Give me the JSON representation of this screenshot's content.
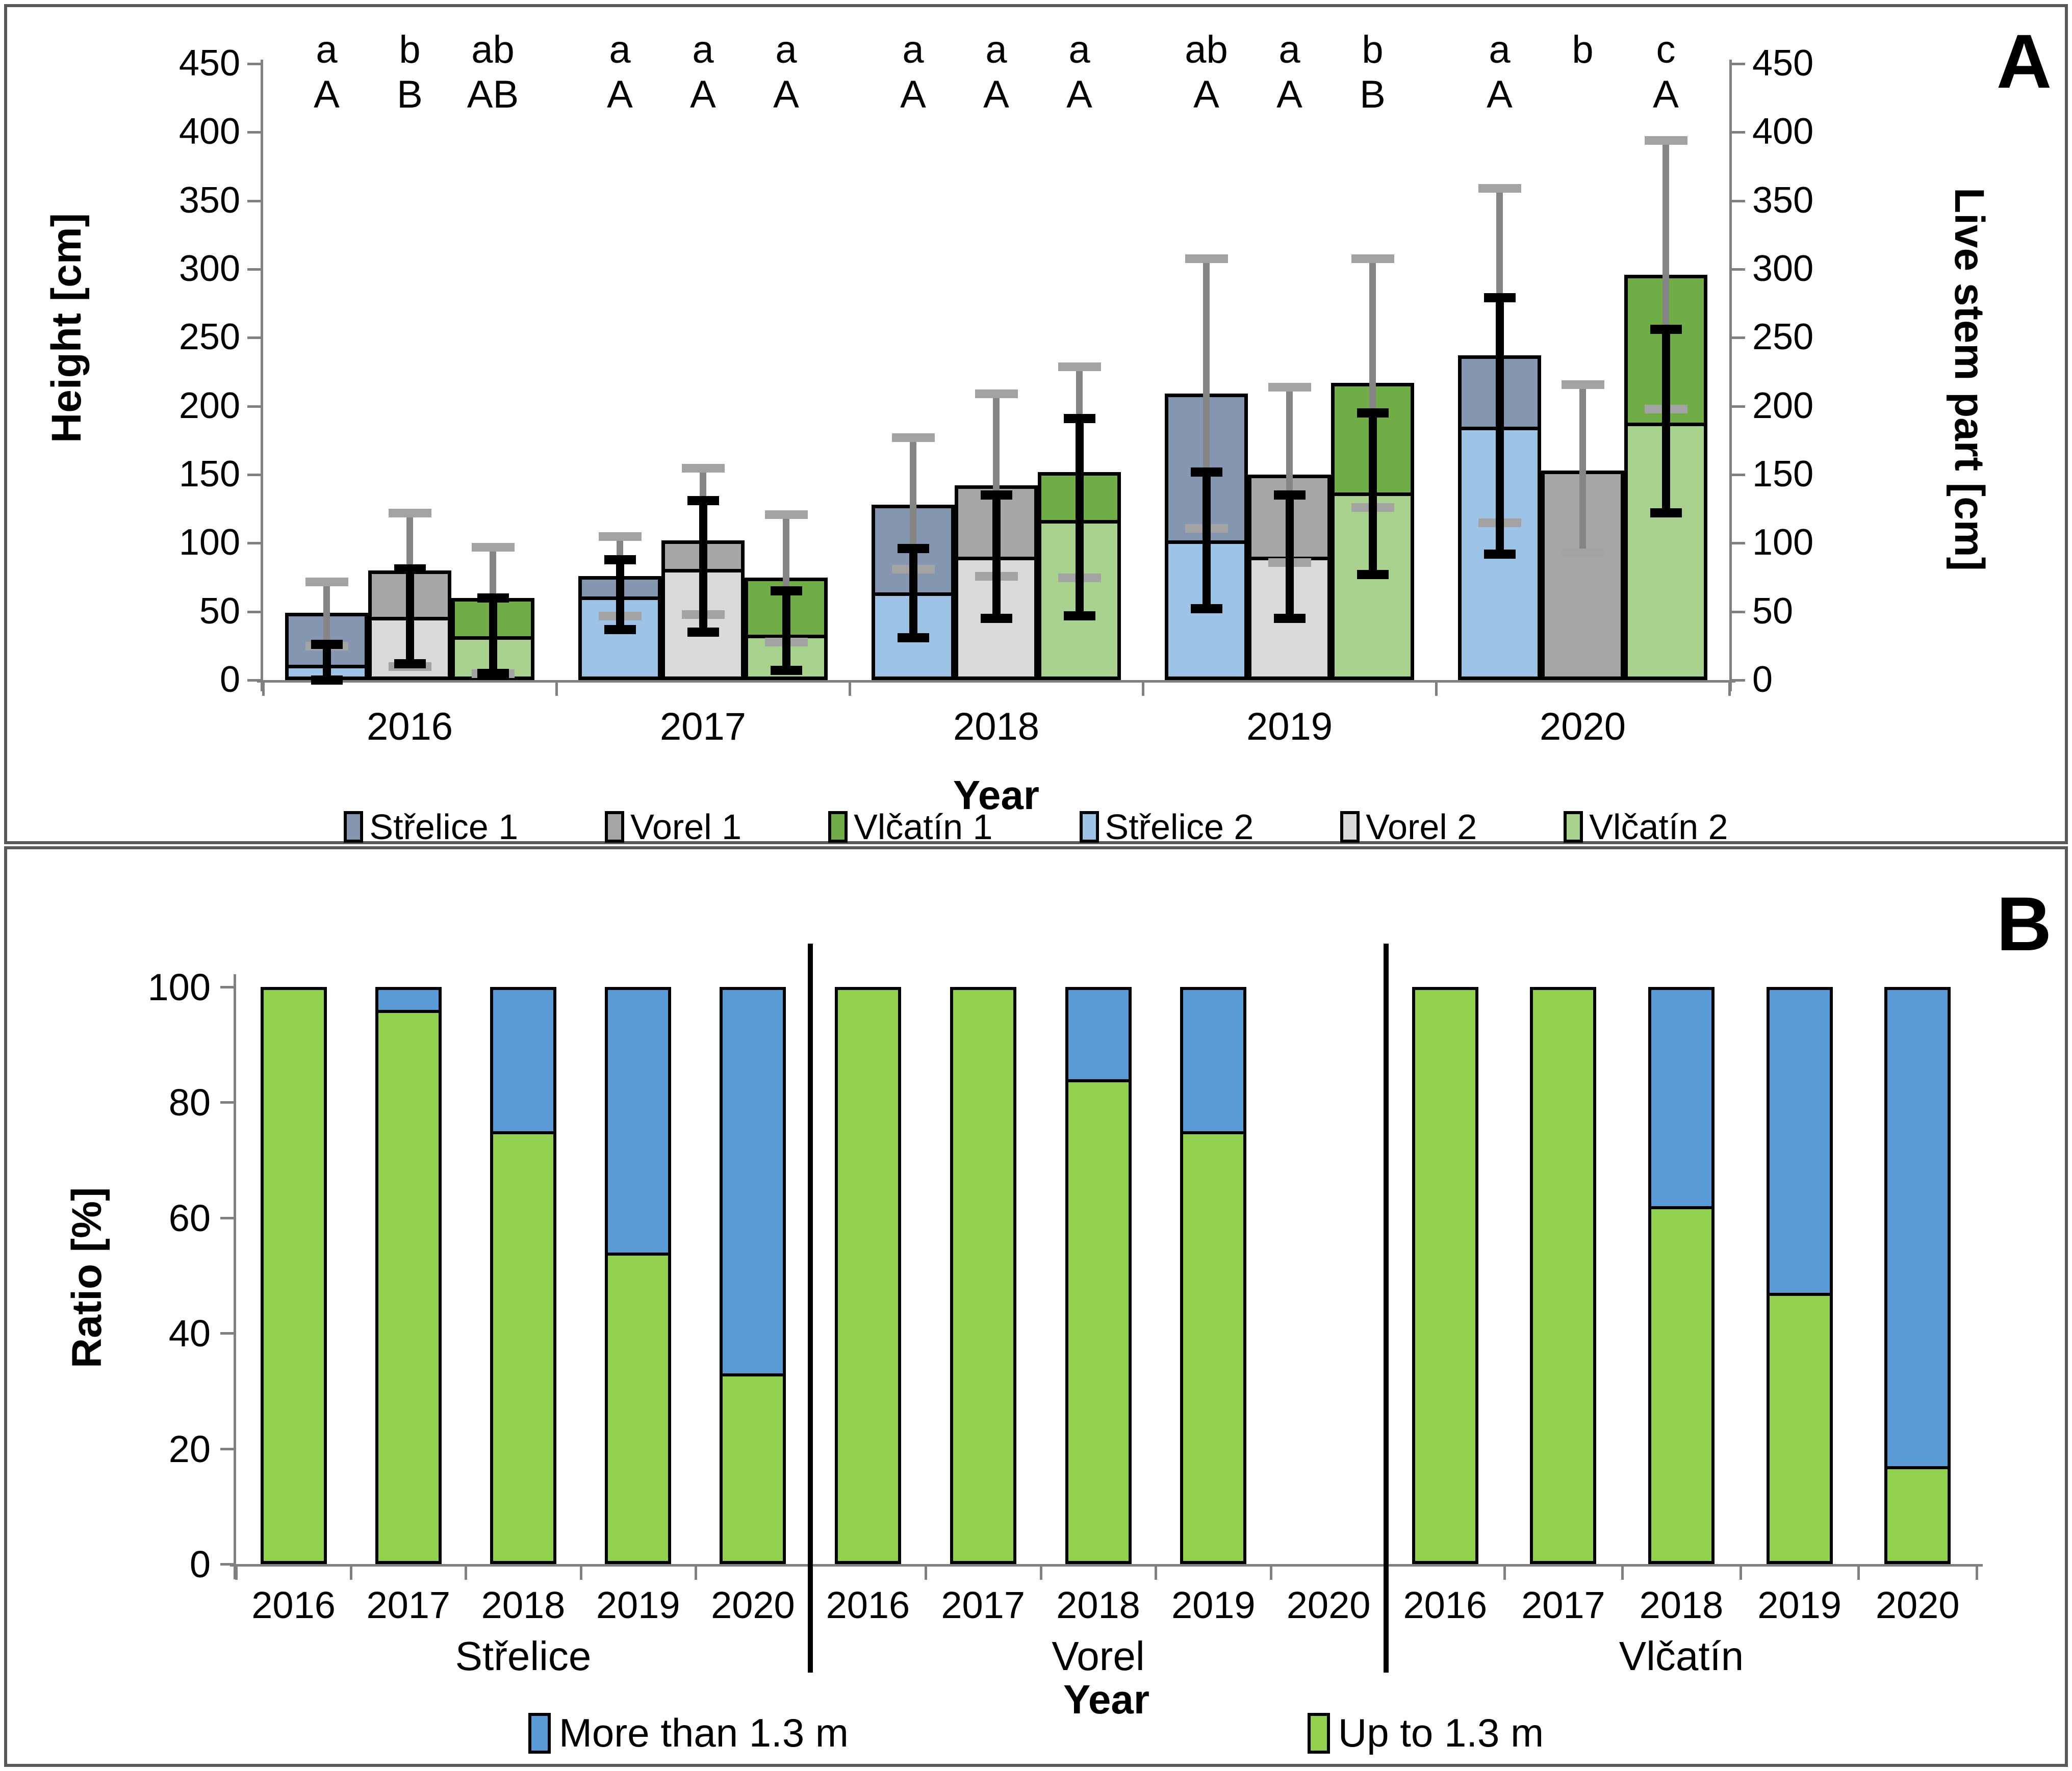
{
  "page": {
    "panel_a_label": "A",
    "panel_b_label": "B"
  },
  "colors": {
    "strelice_dark": "#8496b0",
    "strelice_light": "#9dc3e6",
    "vorel_dark": "#a6a6a6",
    "vorel_light": "#d9d9d9",
    "vlcatin_dark": "#70ad47",
    "vlcatin_light": "#a9d18e",
    "ratio_blue": "#5b9bd5",
    "ratio_green": "#92d050",
    "axis_line": "#808080",
    "tick_mark": "#595959",
    "err_gray_line": "#858585",
    "err_gray_cap": "#a3a3a3",
    "err_black": "#000000",
    "panel_border": "#595959"
  },
  "chart_data": [
    {
      "type": "bar",
      "panel": "A",
      "axes": {
        "left_label": "Height [cm]",
        "right_label": "Live stem part [cm]",
        "x_label": "Year",
        "ylim": [
          0,
          450
        ],
        "ytick_step": 50,
        "grid": false,
        "legend_position": "bottom"
      },
      "legend": [
        {
          "label": "Střelice 1",
          "color_key": "strelice_dark"
        },
        {
          "label": "Vorel 1",
          "color_key": "vorel_dark"
        },
        {
          "label": "Vlčatín 1",
          "color_key": "vlcatin_dark"
        },
        {
          "label": "Střelice 2",
          "color_key": "strelice_light"
        },
        {
          "label": "Vorel 2",
          "color_key": "vorel_light"
        },
        {
          "label": "Vlčatín 2",
          "color_key": "vlcatin_light"
        }
      ],
      "categories": [
        "2016",
        "2017",
        "2018",
        "2019",
        "2020"
      ],
      "groups": [
        {
          "year": "2016",
          "bars": [
            {
              "site": "Střelice",
              "total_height": 49,
              "live_stem": 11,
              "total_sd_range": [
                25,
                72
              ],
              "live_sd_range": [
                0,
                26
              ],
              "letter_lower": "a",
              "letter_upper": "A",
              "color_total": "strelice_dark",
              "color_live": "strelice_light"
            },
            {
              "site": "Vorel",
              "total_height": 80,
              "live_stem": 46,
              "total_sd_range": [
                10,
                122
              ],
              "live_sd_range": [
                12,
                81
              ],
              "letter_lower": "b",
              "letter_upper": "B",
              "color_total": "vorel_dark",
              "color_live": "vorel_light"
            },
            {
              "site": "Vlčatín",
              "total_height": 60,
              "live_stem": 32,
              "total_sd_range": [
                5,
                97
              ],
              "live_sd_range": [
                5,
                60
              ],
              "letter_lower": "ab",
              "letter_upper": "AB",
              "color_total": "vlcatin_dark",
              "color_live": "vlcatin_light"
            }
          ]
        },
        {
          "year": "2017",
          "bars": [
            {
              "site": "Střelice",
              "total_height": 76,
              "live_stem": 61,
              "total_sd_range": [
                47,
                105
              ],
              "live_sd_range": [
                37,
                88
              ],
              "letter_lower": "a",
              "letter_upper": "A",
              "color_total": "strelice_dark",
              "color_live": "strelice_light"
            },
            {
              "site": "Vorel",
              "total_height": 102,
              "live_stem": 81,
              "total_sd_range": [
                48,
                155
              ],
              "live_sd_range": [
                35,
                131
              ],
              "letter_lower": "a",
              "letter_upper": "A",
              "color_total": "vorel_dark",
              "color_live": "vorel_light"
            },
            {
              "site": "Vlčatín",
              "total_height": 75,
              "live_stem": 33,
              "total_sd_range": [
                28,
                121
              ],
              "live_sd_range": [
                7,
                65
              ],
              "letter_lower": "a",
              "letter_upper": "A",
              "color_total": "vlcatin_dark",
              "color_live": "vlcatin_light"
            }
          ]
        },
        {
          "year": "2018",
          "bars": [
            {
              "site": "Střelice",
              "total_height": 128,
              "live_stem": 64,
              "total_sd_range": [
                81,
                177
              ],
              "live_sd_range": [
                31,
                96
              ],
              "letter_lower": "a",
              "letter_upper": "A",
              "color_total": "strelice_dark",
              "color_live": "strelice_light"
            },
            {
              "site": "Vorel",
              "total_height": 142,
              "live_stem": 90,
              "total_sd_range": [
                76,
                209
              ],
              "live_sd_range": [
                45,
                135
              ],
              "letter_lower": "a",
              "letter_upper": "A",
              "color_total": "vorel_dark",
              "color_live": "vorel_light"
            },
            {
              "site": "Vlčatín",
              "total_height": 152,
              "live_stem": 117,
              "total_sd_range": [
                75,
                229
              ],
              "live_sd_range": [
                47,
                191
              ],
              "letter_lower": "a",
              "letter_upper": "A",
              "color_total": "vlcatin_dark",
              "color_live": "vlcatin_light"
            }
          ]
        },
        {
          "year": "2019",
          "bars": [
            {
              "site": "Střelice",
              "total_height": 209,
              "live_stem": 102,
              "total_sd_range": [
                111,
                308
              ],
              "live_sd_range": [
                52,
                152
              ],
              "letter_lower": "ab",
              "letter_upper": "A",
              "color_total": "strelice_dark",
              "color_live": "strelice_light"
            },
            {
              "site": "Vorel",
              "total_height": 150,
              "live_stem": 90,
              "total_sd_range": [
                86,
                214
              ],
              "live_sd_range": [
                45,
                135
              ],
              "letter_lower": "a",
              "letter_upper": "A",
              "color_total": "vorel_dark",
              "color_live": "vorel_light"
            },
            {
              "site": "Vlčatín",
              "total_height": 217,
              "live_stem": 137,
              "total_sd_range": [
                126,
                308
              ],
              "live_sd_range": [
                77,
                195
              ],
              "letter_lower": "b",
              "letter_upper": "B",
              "color_total": "vlcatin_dark",
              "color_live": "vlcatin_light"
            }
          ]
        },
        {
          "year": "2020",
          "bars": [
            {
              "site": "Střelice",
              "total_height": 237,
              "live_stem": 185,
              "total_sd_range": [
                115,
                359
              ],
              "live_sd_range": [
                92,
                279
              ],
              "letter_lower": "a",
              "letter_upper": "A",
              "color_total": "strelice_dark",
              "color_live": "strelice_light"
            },
            {
              "site": "Vorel",
              "total_height": 153,
              "live_stem": null,
              "total_sd_range": [
                93,
                216
              ],
              "live_sd_range": null,
              "letter_lower": "b",
              "letter_upper": "",
              "color_total": "vorel_dark",
              "color_live": "vorel_light"
            },
            {
              "site": "Vlčatín",
              "total_height": 296,
              "live_stem": 188,
              "total_sd_range": [
                198,
                394
              ],
              "live_sd_range": [
                122,
                256
              ],
              "letter_lower": "c",
              "letter_upper": "A",
              "color_total": "vlcatin_dark",
              "color_live": "vlcatin_light"
            }
          ]
        }
      ]
    },
    {
      "type": "stacked-bar-100",
      "panel": "B",
      "axes": {
        "y_label": "Ratio [%]",
        "x_label": "Year",
        "ylim": [
          0,
          100
        ],
        "ytick_step": 20,
        "grid": false,
        "legend_position": "bottom"
      },
      "legend": [
        {
          "label": "More than 1.3 m",
          "color_key": "ratio_blue"
        },
        {
          "label": "Up to 1.3 m",
          "color_key": "ratio_green"
        }
      ],
      "sites": [
        {
          "name": "Střelice",
          "values": [
            {
              "year": "2016",
              "up_to": 100,
              "more_than": 0
            },
            {
              "year": "2017",
              "up_to": 96,
              "more_than": 4
            },
            {
              "year": "2018",
              "up_to": 75,
              "more_than": 25
            },
            {
              "year": "2019",
              "up_to": 54,
              "more_than": 46
            },
            {
              "year": "2020",
              "up_to": 33,
              "more_than": 67
            }
          ]
        },
        {
          "name": "Vorel",
          "values": [
            {
              "year": "2016",
              "up_to": 100,
              "more_than": 0
            },
            {
              "year": "2017",
              "up_to": 100,
              "more_than": 0
            },
            {
              "year": "2018",
              "up_to": 84,
              "more_than": 16
            },
            {
              "year": "2019",
              "up_to": 75,
              "more_than": 25
            },
            {
              "year": "2020",
              "up_to": null,
              "more_than": null
            }
          ]
        },
        {
          "name": "Vlčatín",
          "values": [
            {
              "year": "2016",
              "up_to": 100,
              "more_than": 0
            },
            {
              "year": "2017",
              "up_to": 100,
              "more_than": 0
            },
            {
              "year": "2018",
              "up_to": 62,
              "more_than": 38
            },
            {
              "year": "2019",
              "up_to": 47,
              "more_than": 53
            },
            {
              "year": "2020",
              "up_to": 17,
              "more_than": 83
            }
          ]
        }
      ]
    }
  ]
}
